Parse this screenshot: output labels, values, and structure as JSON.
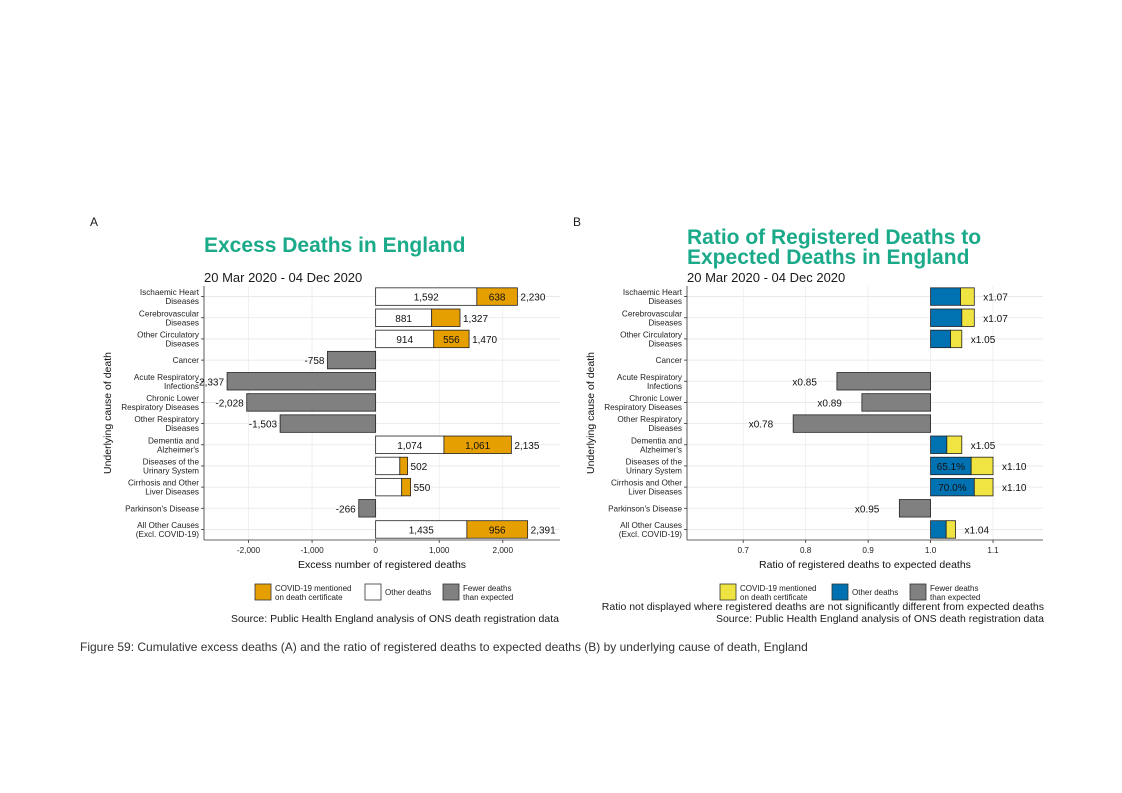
{
  "figure_caption": "Figure 59: Cumulative excess deaths (A) and the ratio of registered deaths to expected deaths (B) by underlying cause of death, England",
  "colors": {
    "covid": "#E69F00",
    "other": "#FFFFFF",
    "fewer": "#808080",
    "covid_b": "#F0E442",
    "other_b": "#0072B2",
    "title": "#1AAA8A"
  },
  "chart_data": [
    {
      "panel": "A",
      "type": "bar",
      "title": "Excess Deaths in England",
      "subtitle": "20 Mar 2020 - 04 Dec 2020",
      "xlabel": "Excess number of registered deaths",
      "ylabel": "Underlying cause of death",
      "xlim": [
        -2700,
        2900
      ],
      "xticks": [
        -2000,
        -1000,
        0,
        1000,
        2000
      ],
      "xtick_labels": [
        "-2,000",
        "-1,000",
        "0",
        "1,000",
        "2,000"
      ],
      "categories": [
        [
          "Ischaemic Heart",
          "Diseases"
        ],
        [
          "Cerebrovascular",
          "Diseases"
        ],
        [
          "Other Circulatory",
          "Diseases"
        ],
        [
          "Cancer"
        ],
        [
          "Acute Respiratory",
          "Infections"
        ],
        [
          "Chronic Lower",
          "Respiratory Diseases"
        ],
        [
          "Other Respiratory",
          "Diseases"
        ],
        [
          "Dementia and",
          "Alzheimer's"
        ],
        [
          "Diseases of the",
          "Urinary System"
        ],
        [
          "Cirrhosis and Other",
          "Liver Diseases"
        ],
        [
          "Parkinson's Disease"
        ],
        [
          "All Other Causes",
          "(Excl. COVID-19)"
        ]
      ],
      "series": [
        {
          "name": "Other deaths",
          "values": [
            1592,
            881,
            914,
            null,
            null,
            null,
            null,
            1074,
            380,
            410,
            null,
            1435
          ],
          "labels": [
            "1,592",
            "881",
            "914",
            "",
            "",
            "",
            "",
            "1,074",
            "",
            "",
            "",
            "1,435"
          ]
        },
        {
          "name": "COVID-19 mentioned on death certificate",
          "values": [
            638,
            446,
            556,
            null,
            null,
            null,
            null,
            1061,
            122,
            140,
            null,
            956
          ],
          "labels": [
            "638",
            "",
            "556",
            "",
            "",
            "",
            "",
            "1,061",
            "",
            "",
            "",
            "956"
          ]
        },
        {
          "name": "Fewer deaths than expected",
          "values": [
            null,
            null,
            null,
            -758,
            -2337,
            -2028,
            -1503,
            null,
            null,
            null,
            -266,
            null
          ],
          "labels": [
            "",
            "",
            "",
            "-758",
            "-2,337",
            "-2,028",
            "-1,503",
            "",
            "",
            "",
            "-266",
            ""
          ]
        }
      ],
      "totals": [
        2230,
        1327,
        1470,
        null,
        null,
        null,
        null,
        2135,
        502,
        550,
        null,
        2391
      ],
      "total_labels": [
        "2,230",
        "1,327",
        "1,470",
        "",
        "",
        "",
        "",
        "2,135",
        "502",
        "550",
        "",
        "2,391"
      ],
      "legend": [
        {
          "key": "covid",
          "text": [
            "COVID-19 mentioned",
            "on death certificate"
          ]
        },
        {
          "key": "other",
          "text": [
            "Other deaths"
          ]
        },
        {
          "key": "fewer",
          "text": [
            "Fewer deaths",
            "than expected"
          ]
        }
      ],
      "legend_position": "bottom",
      "notes": [],
      "source": "Source: Public Health England analysis of ONS death registration data"
    },
    {
      "panel": "B",
      "type": "bar",
      "title": "Ratio of Registered Deaths to Expected Deaths in England",
      "title_lines": [
        "Ratio of Registered Deaths to",
        "Expected Deaths in England"
      ],
      "subtitle": "20 Mar 2020 - 04 Dec 2020",
      "xlabel": "Ratio of registered deaths to expected deaths",
      "ylabel": "Underlying cause of death",
      "xlim": [
        0.61,
        1.18
      ],
      "xticks": [
        0.7,
        0.8,
        0.9,
        1.0,
        1.1
      ],
      "xtick_labels": [
        "0.7",
        "0.8",
        "0.9",
        "1.0",
        "1.1"
      ],
      "categories": [
        [
          "Ischaemic Heart",
          "Diseases"
        ],
        [
          "Cerebrovascular",
          "Diseases"
        ],
        [
          "Other Circulatory",
          "Diseases"
        ],
        [
          "Cancer"
        ],
        [
          "Acute Respiratory",
          "Infections"
        ],
        [
          "Chronic Lower",
          "Respiratory Diseases"
        ],
        [
          "Other Respiratory",
          "Diseases"
        ],
        [
          "Dementia and",
          "Alzheimer's"
        ],
        [
          "Diseases of the",
          "Urinary System"
        ],
        [
          "Cirrhosis and Other",
          "Liver Diseases"
        ],
        [
          "Parkinson's Disease"
        ],
        [
          "All Other Causes",
          "(Excl. COVID-19)"
        ]
      ],
      "ratios": [
        1.07,
        1.07,
        1.05,
        null,
        0.85,
        0.89,
        0.78,
        1.05,
        1.1,
        1.1,
        0.95,
        1.04
      ],
      "ratio_labels": [
        "x1.07",
        "x1.07",
        "x1.05",
        "",
        "x0.85",
        "x0.89",
        "x0.78",
        "x1.05",
        "x1.10",
        "x1.10",
        "x0.95",
        "x1.04"
      ],
      "other_share_end": [
        1.048,
        1.05,
        1.032,
        null,
        null,
        null,
        null,
        1.026,
        1.065,
        1.07,
        null,
        1.025
      ],
      "inner_labels": [
        "",
        "",
        "",
        "",
        "",
        "",
        "",
        "",
        "65.1%",
        "70.0%",
        "",
        ""
      ],
      "legend": [
        {
          "key": "covid_b",
          "text": [
            "COVID-19 mentioned",
            "on death certificate"
          ]
        },
        {
          "key": "other_b",
          "text": [
            "Other deaths"
          ]
        },
        {
          "key": "fewer",
          "text": [
            "Fewer deaths",
            "than expected"
          ]
        }
      ],
      "legend_position": "bottom",
      "notes": [
        "Ratio not displayed where registered deaths are not significantly different from expected deaths"
      ],
      "source": "Source: Public Health England analysis of ONS death registration data"
    }
  ]
}
